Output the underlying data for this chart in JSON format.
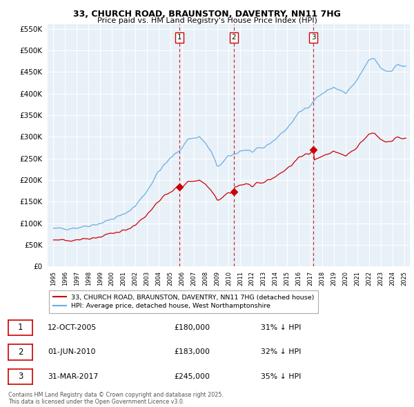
{
  "title_line1": "33, CHURCH ROAD, BRAUNSTON, DAVENTRY, NN11 7HG",
  "title_line2": "Price paid vs. HM Land Registry's House Price Index (HPI)",
  "background_color": "#ffffff",
  "plot_bg_color": "#e8f0f8",
  "grid_color": "#ffffff",
  "hpi_color": "#6aade4",
  "price_color": "#cc0000",
  "vline_color": "#cc0000",
  "transactions": [
    {
      "date_dec": 2005.79,
      "price": 180000,
      "label": "1"
    },
    {
      "date_dec": 2010.42,
      "price": 183000,
      "label": "2"
    },
    {
      "date_dec": 2017.25,
      "price": 245000,
      "label": "3"
    }
  ],
  "legend_entries": [
    "33, CHURCH ROAD, BRAUNSTON, DAVENTRY, NN11 7HG (detached house)",
    "HPI: Average price, detached house, West Northamptonshire"
  ],
  "table_rows": [
    {
      "num": "1",
      "date": "12-OCT-2005",
      "price": "£180,000",
      "pct": "31% ↓ HPI"
    },
    {
      "num": "2",
      "date": "01-JUN-2010",
      "price": "£183,000",
      "pct": "32% ↓ HPI"
    },
    {
      "num": "3",
      "date": "31-MAR-2017",
      "price": "£245,000",
      "pct": "35% ↓ HPI"
    }
  ],
  "footer": "Contains HM Land Registry data © Crown copyright and database right 2025.\nThis data is licensed under the Open Government Licence v3.0.",
  "ylim": [
    0,
    560000
  ],
  "yticks": [
    0,
    50000,
    100000,
    150000,
    200000,
    250000,
    300000,
    350000,
    400000,
    450000,
    500000,
    550000
  ],
  "xlim_start": 1994.5,
  "xlim_end": 2025.5
}
